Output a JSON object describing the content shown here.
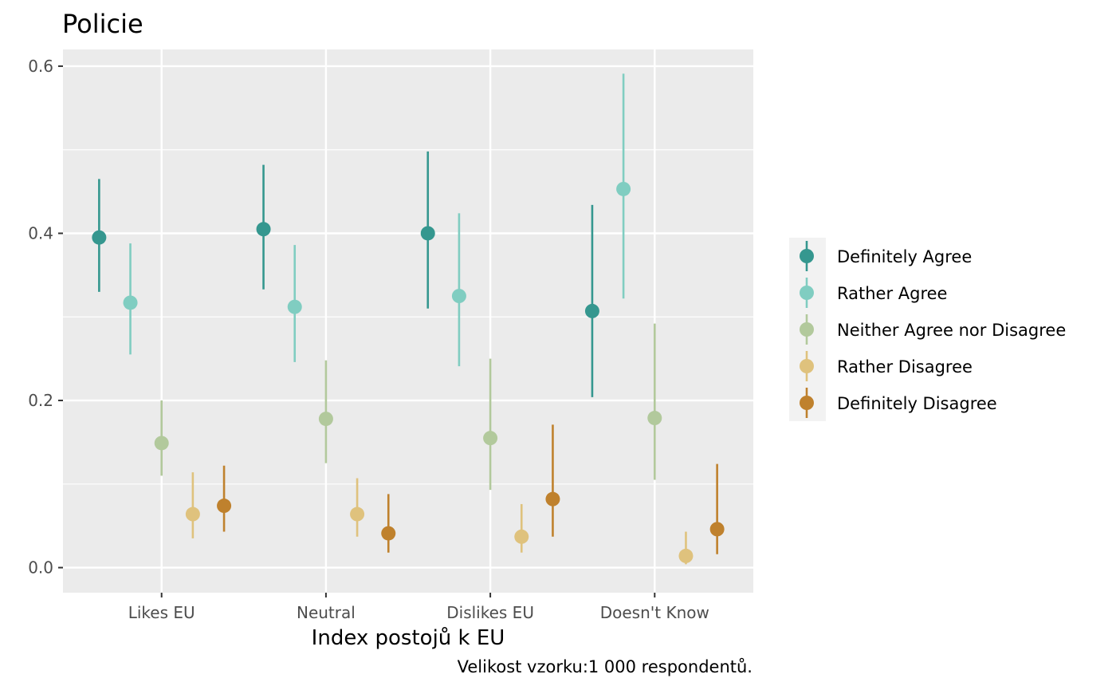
{
  "chart_data": {
    "type": "pointrange",
    "title": "Policie",
    "xlabel": "Index postojů k EU",
    "ylabel": "",
    "caption": "Velikost vzorku:1 000 respondentů.",
    "categories": [
      "Likes EU",
      "Neutral",
      "Dislikes EU",
      "Doesn't Know"
    ],
    "ylim": [
      -0.03,
      0.62
    ],
    "yticks": [
      0.0,
      0.2,
      0.4,
      0.6
    ],
    "ytick_labels": [
      "0.0",
      "0.2",
      "0.4",
      "0.6"
    ],
    "grid": true,
    "legend_position": "right",
    "series": [
      {
        "name": "Definitely Agree",
        "color": "#35978f",
        "values": [
          0.395,
          0.405,
          0.4,
          0.307
        ],
        "lower": [
          0.33,
          0.333,
          0.31,
          0.204
        ],
        "upper": [
          0.465,
          0.482,
          0.498,
          0.434
        ]
      },
      {
        "name": "Rather Agree",
        "color": "#80cdc1",
        "values": [
          0.317,
          0.312,
          0.325,
          0.453
        ],
        "lower": [
          0.255,
          0.246,
          0.241,
          0.322
        ],
        "upper": [
          0.388,
          0.386,
          0.424,
          0.591
        ]
      },
      {
        "name": "Neither Agree nor Disagree",
        "color": "#b2c99c",
        "values": [
          0.149,
          0.178,
          0.155,
          0.179
        ],
        "lower": [
          0.11,
          0.125,
          0.093,
          0.105
        ],
        "upper": [
          0.2,
          0.248,
          0.25,
          0.292
        ]
      },
      {
        "name": "Rather Disagree",
        "color": "#dfc27d",
        "values": [
          0.064,
          0.064,
          0.037,
          0.014
        ],
        "lower": [
          0.035,
          0.037,
          0.018,
          0.004
        ],
        "upper": [
          0.114,
          0.107,
          0.076,
          0.043
        ]
      },
      {
        "name": "Definitely Disagree",
        "color": "#bf812d",
        "values": [
          0.074,
          0.041,
          0.082,
          0.046
        ],
        "lower": [
          0.043,
          0.018,
          0.037,
          0.016
        ],
        "upper": [
          0.122,
          0.088,
          0.171,
          0.124
        ]
      }
    ]
  }
}
